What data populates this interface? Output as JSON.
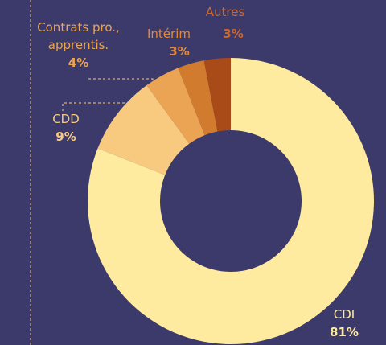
{
  "chart_data": {
    "type": "donut",
    "categories": [
      "CDI",
      "CDD",
      "Contrats pro., apprentis.",
      "Intérim",
      "Autres"
    ],
    "values": [
      81,
      9,
      4,
      3,
      3
    ],
    "value_labels": [
      "81%",
      "9%",
      "4%",
      "3%",
      "3%"
    ],
    "colors": [
      "#feeba0",
      "#f8ca80",
      "#eaa454",
      "#d17b2f",
      "#a84b18"
    ],
    "label_colors": [
      "#feeba0",
      "#f8ca80",
      "#eaa454",
      "#e08a3c",
      "#d0672c"
    ]
  }
}
